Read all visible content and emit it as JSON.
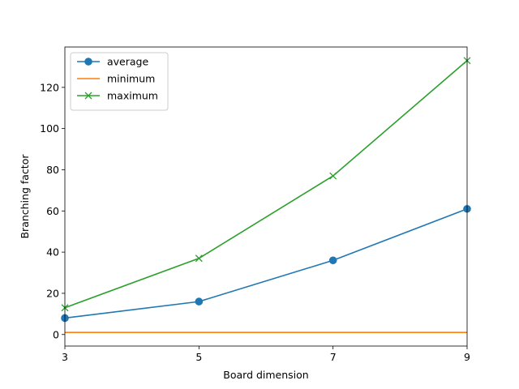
{
  "chart_data": {
    "type": "line",
    "title": "",
    "xlabel": "Board dimension",
    "ylabel": "Branching factor",
    "x": [
      3,
      5,
      7,
      9
    ],
    "xticks": [
      3,
      5,
      7,
      9
    ],
    "yticks": [
      0,
      20,
      40,
      60,
      80,
      100,
      120
    ],
    "xlim": [
      3,
      9
    ],
    "ylim": [
      -5.6,
      139.6
    ],
    "grid": false,
    "legend_position": "upper-left",
    "series": [
      {
        "name": "average",
        "values": [
          8,
          16,
          36,
          61
        ],
        "color": "#1f77b4",
        "marker": "circle"
      },
      {
        "name": "minimum",
        "values": [
          1,
          1,
          1,
          1
        ],
        "color": "#ff7f0e",
        "marker": "none"
      },
      {
        "name": "maximum",
        "values": [
          13,
          37,
          77,
          133
        ],
        "color": "#2ca02c",
        "marker": "x"
      }
    ]
  }
}
